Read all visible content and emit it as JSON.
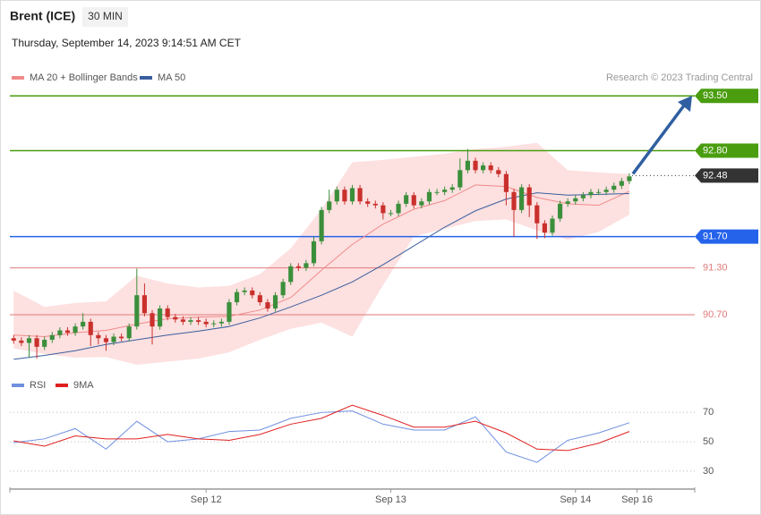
{
  "chart_data": [
    {
      "type": "candlestick",
      "title": "Brent (ICE)",
      "interval": "30 MIN",
      "subtitle": "Thursday, September 14, 2023 9:14:51 AM CET",
      "source": "Research © 2023 Trading Central",
      "xlim": [
        -0.5,
        88.5
      ],
      "ylim": [
        89.98,
        93.64
      ],
      "up_color": "#3b8f3b",
      "down_color": "#c9302c",
      "open": [
        90.4,
        90.37,
        90.34,
        90.4,
        90.29,
        90.38,
        90.44,
        90.5,
        90.47,
        90.55,
        90.61,
        90.44,
        90.4,
        90.35,
        90.42,
        90.4,
        90.55,
        90.95,
        90.72,
        90.55,
        90.78,
        90.67,
        90.64,
        90.61,
        90.63,
        90.61,
        90.58,
        90.59,
        90.61,
        90.86,
        90.99,
        91.01,
        90.95,
        90.86,
        90.78,
        90.95,
        91.12,
        91.32,
        91.3,
        91.36,
        91.64,
        92.04,
        92.15,
        92.3,
        92.15,
        92.32,
        92.15,
        92.12,
        92.1,
        92.0,
        92.0,
        92.12,
        92.23,
        92.1,
        92.15,
        92.27,
        92.27,
        92.3,
        92.33,
        92.55,
        92.67,
        92.55,
        92.61,
        92.55,
        92.5,
        92.27,
        92.04,
        92.33,
        92.1,
        91.87,
        91.75,
        91.93,
        92.12,
        92.15,
        92.19,
        92.23,
        92.27,
        92.27,
        92.3,
        92.35,
        92.41
      ],
      "high": [
        90.44,
        90.41,
        90.44,
        90.44,
        90.42,
        90.48,
        90.54,
        90.54,
        90.59,
        90.72,
        90.65,
        90.48,
        90.44,
        90.46,
        90.46,
        90.59,
        91.29,
        91.1,
        90.76,
        90.82,
        90.82,
        90.71,
        90.68,
        90.67,
        90.67,
        90.65,
        90.63,
        90.65,
        90.9,
        91.03,
        91.05,
        91.05,
        90.99,
        90.9,
        90.99,
        91.16,
        91.36,
        91.36,
        91.4,
        91.7,
        92.08,
        92.3,
        92.34,
        92.34,
        92.36,
        92.36,
        92.19,
        92.16,
        92.14,
        92.04,
        92.16,
        92.27,
        92.27,
        92.19,
        92.31,
        92.31,
        92.34,
        92.37,
        92.7,
        92.82,
        92.71,
        92.65,
        92.65,
        92.59,
        92.54,
        92.31,
        92.37,
        92.37,
        92.14,
        91.91,
        91.97,
        92.16,
        92.19,
        92.23,
        92.27,
        92.31,
        92.31,
        92.34,
        92.39,
        92.45,
        92.51
      ],
      "low": [
        90.33,
        90.3,
        90.15,
        90.14,
        90.25,
        90.34,
        90.4,
        90.43,
        90.43,
        90.51,
        90.3,
        90.32,
        90.24,
        90.31,
        90.36,
        90.36,
        90.51,
        90.68,
        90.32,
        90.51,
        90.63,
        90.6,
        90.57,
        90.57,
        90.57,
        90.54,
        90.54,
        90.55,
        90.57,
        90.82,
        90.95,
        90.91,
        90.82,
        90.74,
        90.74,
        90.91,
        91.08,
        91.26,
        91.26,
        91.32,
        91.6,
        92.0,
        92.11,
        92.11,
        92.11,
        92.11,
        92.08,
        92.06,
        91.92,
        91.96,
        91.96,
        92.08,
        92.06,
        92.06,
        92.11,
        92.23,
        92.23,
        92.26,
        92.29,
        92.51,
        92.51,
        92.51,
        92.51,
        92.46,
        92.1,
        91.7,
        92.0,
        91.95,
        91.67,
        91.68,
        91.71,
        91.89,
        92.08,
        92.11,
        92.15,
        92.19,
        92.23,
        92.23,
        92.26,
        92.31,
        92.37
      ],
      "close": [
        90.37,
        90.34,
        90.4,
        90.29,
        90.38,
        90.44,
        90.5,
        90.47,
        90.55,
        90.61,
        90.44,
        90.4,
        90.35,
        90.42,
        90.4,
        90.55,
        90.95,
        90.72,
        90.55,
        90.78,
        90.67,
        90.64,
        90.61,
        90.63,
        90.61,
        90.58,
        90.59,
        90.61,
        90.86,
        90.99,
        91.01,
        90.95,
        90.86,
        90.78,
        90.95,
        91.12,
        91.32,
        91.3,
        91.36,
        91.64,
        92.04,
        92.15,
        92.3,
        92.15,
        92.32,
        92.15,
        92.12,
        92.1,
        92.0,
        92.0,
        92.12,
        92.23,
        92.1,
        92.15,
        92.27,
        92.27,
        92.3,
        92.33,
        92.55,
        92.67,
        92.55,
        92.61,
        92.55,
        92.5,
        92.27,
        92.04,
        92.33,
        92.1,
        91.87,
        91.75,
        91.93,
        92.12,
        92.15,
        92.19,
        92.23,
        92.27,
        92.27,
        92.3,
        92.35,
        92.41,
        92.47
      ],
      "indicator_x": [
        0,
        4,
        8,
        12,
        16,
        20,
        24,
        28,
        32,
        36,
        40,
        44,
        48,
        52,
        56,
        60,
        64,
        68,
        72,
        76,
        80
      ],
      "series": [
        {
          "name": "MA 20 + Bollinger Bands",
          "color": "#f08a8a",
          "band_color": "#fde0e0",
          "values": [
            90.44,
            90.42,
            90.47,
            90.5,
            90.58,
            90.65,
            90.67,
            90.68,
            90.76,
            90.92,
            91.27,
            91.6,
            91.86,
            92.05,
            92.16,
            92.36,
            92.34,
            92.2,
            92.12,
            92.1,
            92.28
          ],
          "upper": [
            91.01,
            90.8,
            90.85,
            90.87,
            91.2,
            91.1,
            91.05,
            91.07,
            91.22,
            91.55,
            92.05,
            92.65,
            92.68,
            92.72,
            92.76,
            92.82,
            92.85,
            92.9,
            92.55,
            92.52,
            92.5
          ],
          "lower": [
            90.27,
            90.2,
            90.15,
            90.16,
            90.06,
            90.1,
            90.14,
            90.22,
            90.38,
            90.52,
            90.6,
            90.42,
            91.08,
            91.7,
            91.8,
            91.9,
            91.92,
            91.78,
            91.66,
            91.76,
            91.98
          ]
        },
        {
          "name": "MA 50",
          "color": "#3a5f9e",
          "values": [
            90.13,
            90.18,
            90.24,
            90.32,
            90.38,
            90.44,
            90.49,
            90.55,
            90.66,
            90.8,
            90.95,
            91.12,
            91.34,
            91.58,
            91.82,
            92.03,
            92.18,
            92.26,
            92.23,
            92.24,
            92.25
          ]
        }
      ],
      "levels": [
        {
          "value": 93.5,
          "label": "93.50",
          "color": "#4a9d0f",
          "tag": true
        },
        {
          "value": 92.8,
          "label": "92.80",
          "color": "#4a9d0f",
          "tag": true
        },
        {
          "value": 91.7,
          "label": "91.70",
          "color": "#2563eb",
          "tag": true
        },
        {
          "value": 91.3,
          "label": "91.30",
          "color": "#e07a7a",
          "tag": false
        },
        {
          "value": 90.7,
          "label": "90.70",
          "color": "#e07a7a",
          "tag": false
        }
      ],
      "last_price": 92.48,
      "last_price_color": "#333333"
    },
    {
      "type": "line",
      "xlim": [
        -0.5,
        88.5
      ],
      "ylim": [
        22,
        83
      ],
      "yticks": [
        30,
        50,
        70
      ],
      "grid": true,
      "x": [
        0,
        4,
        8,
        12,
        16,
        20,
        24,
        28,
        32,
        36,
        40,
        44,
        48,
        52,
        56,
        60,
        64,
        68,
        72,
        76,
        80
      ],
      "xticks": [
        {
          "value": 25,
          "label": "Sep 12"
        },
        {
          "value": 49,
          "label": "Sep 13"
        },
        {
          "value": 73,
          "label": "Sep 14"
        },
        {
          "value": 81,
          "label": "Sep 16"
        }
      ],
      "series": [
        {
          "name": "RSI",
          "color": "#6f8fe0",
          "values": [
            49.4,
            52,
            59,
            45,
            64,
            50,
            52,
            57,
            58,
            66,
            70,
            71,
            62,
            58,
            58,
            67,
            43,
            36,
            51,
            56,
            63
          ]
        },
        {
          "name": "9MA",
          "color": "#e02020",
          "values": [
            50.6,
            47,
            54,
            52,
            52,
            55,
            52,
            51,
            55,
            62,
            66,
            75,
            68,
            60,
            60,
            64,
            56,
            45,
            44,
            49,
            57
          ]
        }
      ]
    }
  ]
}
